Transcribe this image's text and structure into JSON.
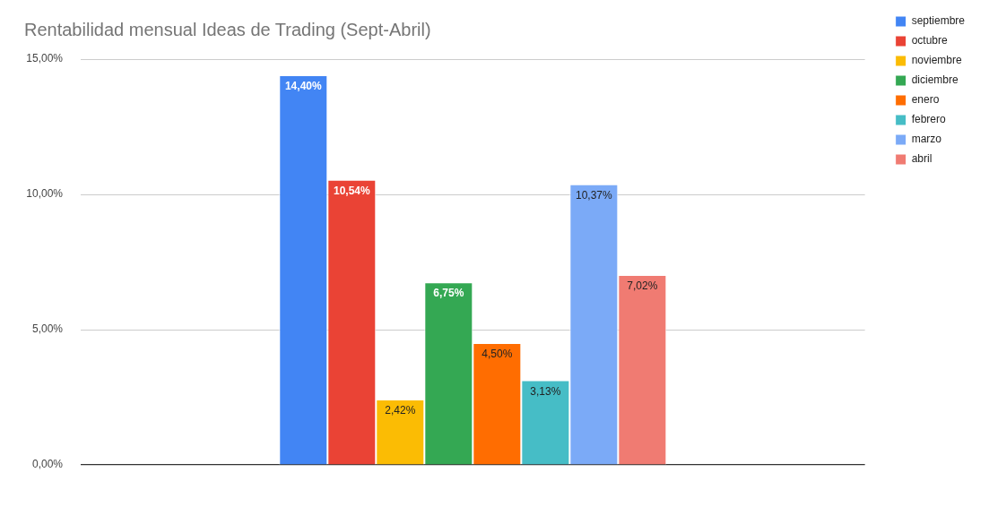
{
  "chart_data": {
    "type": "bar",
    "title": "Rentabilidad mensual Ideas de Trading (Sept-Abril)",
    "categories": [
      null
    ],
    "series": [
      {
        "name": "septiembre",
        "color": "#4285f4",
        "values": [
          14.4
        ],
        "value_labels": [
          "14,40%"
        ]
      },
      {
        "name": "octubre",
        "color": "#ea4335",
        "values": [
          10.54
        ],
        "value_labels": [
          "10,54%"
        ]
      },
      {
        "name": "noviembre",
        "color": "#fbbc04",
        "values": [
          2.42
        ],
        "value_labels": [
          "2,42%"
        ]
      },
      {
        "name": "diciembre",
        "color": "#34a853",
        "values": [
          6.75
        ],
        "value_labels": [
          "6,75%"
        ]
      },
      {
        "name": "enero",
        "color": "#ff6d01",
        "values": [
          4.5
        ],
        "value_labels": [
          "4,50%"
        ]
      },
      {
        "name": "febrero",
        "color": "#46bdc6",
        "values": [
          3.13
        ],
        "value_labels": [
          "3,13%"
        ]
      },
      {
        "name": "marzo",
        "color": "#7baaf7",
        "values": [
          10.37
        ],
        "value_labels": [
          "10,37%"
        ]
      },
      {
        "name": "abril",
        "color": "#f07b72",
        "values": [
          7.02
        ],
        "value_labels": [
          "7,02%"
        ]
      }
    ],
    "ylim": [
      0,
      15
    ],
    "yticks": [
      {
        "value": 0,
        "label": "0,00%"
      },
      {
        "value": 5,
        "label": "5,00%"
      },
      {
        "value": 10,
        "label": "10,00%"
      },
      {
        "value": 15,
        "label": "15,00%"
      }
    ],
    "grid": "y",
    "legend": "top right"
  }
}
